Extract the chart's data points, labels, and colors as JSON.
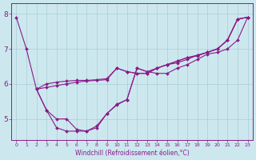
{
  "xlabel": "Windchill (Refroidissement éolien,°C)",
  "xlim": [
    -0.5,
    23.5
  ],
  "ylim": [
    4.4,
    8.3
  ],
  "yticks": [
    5,
    6,
    7,
    8
  ],
  "xticks": [
    0,
    1,
    2,
    3,
    4,
    5,
    6,
    7,
    8,
    9,
    10,
    11,
    12,
    13,
    14,
    15,
    16,
    17,
    18,
    19,
    20,
    21,
    22,
    23
  ],
  "bg_color": "#cce8ee",
  "grid_color": "#a8cdd4",
  "line_color": "#8b1a8b",
  "c1_x": [
    0,
    1,
    2,
    3,
    4,
    5,
    6,
    7,
    8,
    9,
    10,
    11,
    12,
    13,
    14,
    15,
    16,
    17,
    18,
    19,
    20,
    21,
    22,
    23
  ],
  "c1_y": [
    7.9,
    7.0,
    5.85,
    5.25,
    4.75,
    4.65,
    4.65,
    4.65,
    4.75,
    5.15,
    5.4,
    5.55,
    6.45,
    6.35,
    6.3,
    6.3,
    6.45,
    6.55,
    6.7,
    6.85,
    6.9,
    7.0,
    7.25,
    7.9
  ],
  "c2_x": [
    2,
    3,
    4,
    5,
    6,
    7,
    8,
    9,
    10,
    11,
    12,
    13,
    14,
    15,
    16,
    17,
    18,
    19,
    20,
    21,
    22,
    23
  ],
  "c2_y": [
    5.85,
    5.9,
    5.95,
    6.0,
    6.05,
    6.08,
    6.1,
    6.12,
    6.45,
    6.35,
    6.3,
    6.3,
    6.45,
    6.55,
    6.65,
    6.75,
    6.8,
    6.9,
    7.0,
    7.25,
    7.85,
    7.9
  ],
  "c3_x": [
    2,
    3,
    4,
    5,
    6,
    7,
    8,
    9,
    10,
    11,
    12,
    13,
    14,
    15,
    16,
    17,
    18,
    19,
    20,
    21,
    22,
    23
  ],
  "c3_y": [
    5.85,
    6.0,
    6.05,
    6.08,
    6.1,
    6.1,
    6.12,
    6.15,
    6.45,
    6.35,
    6.3,
    6.3,
    6.45,
    6.55,
    6.65,
    6.75,
    6.82,
    6.9,
    7.0,
    7.25,
    7.85,
    7.9
  ],
  "c4_x": [
    2,
    3,
    4,
    5,
    6,
    7,
    8,
    9,
    10,
    11,
    12,
    13,
    14,
    15,
    16,
    17,
    18,
    19,
    20,
    21,
    22,
    23
  ],
  "c4_y": [
    5.85,
    5.25,
    5.0,
    5.0,
    4.7,
    4.65,
    4.8,
    5.15,
    5.42,
    5.55,
    6.45,
    6.35,
    6.45,
    6.55,
    6.6,
    6.7,
    6.82,
    6.9,
    7.0,
    7.25,
    7.85,
    7.9
  ],
  "markersize": 2.0,
  "linewidth": 0.8
}
